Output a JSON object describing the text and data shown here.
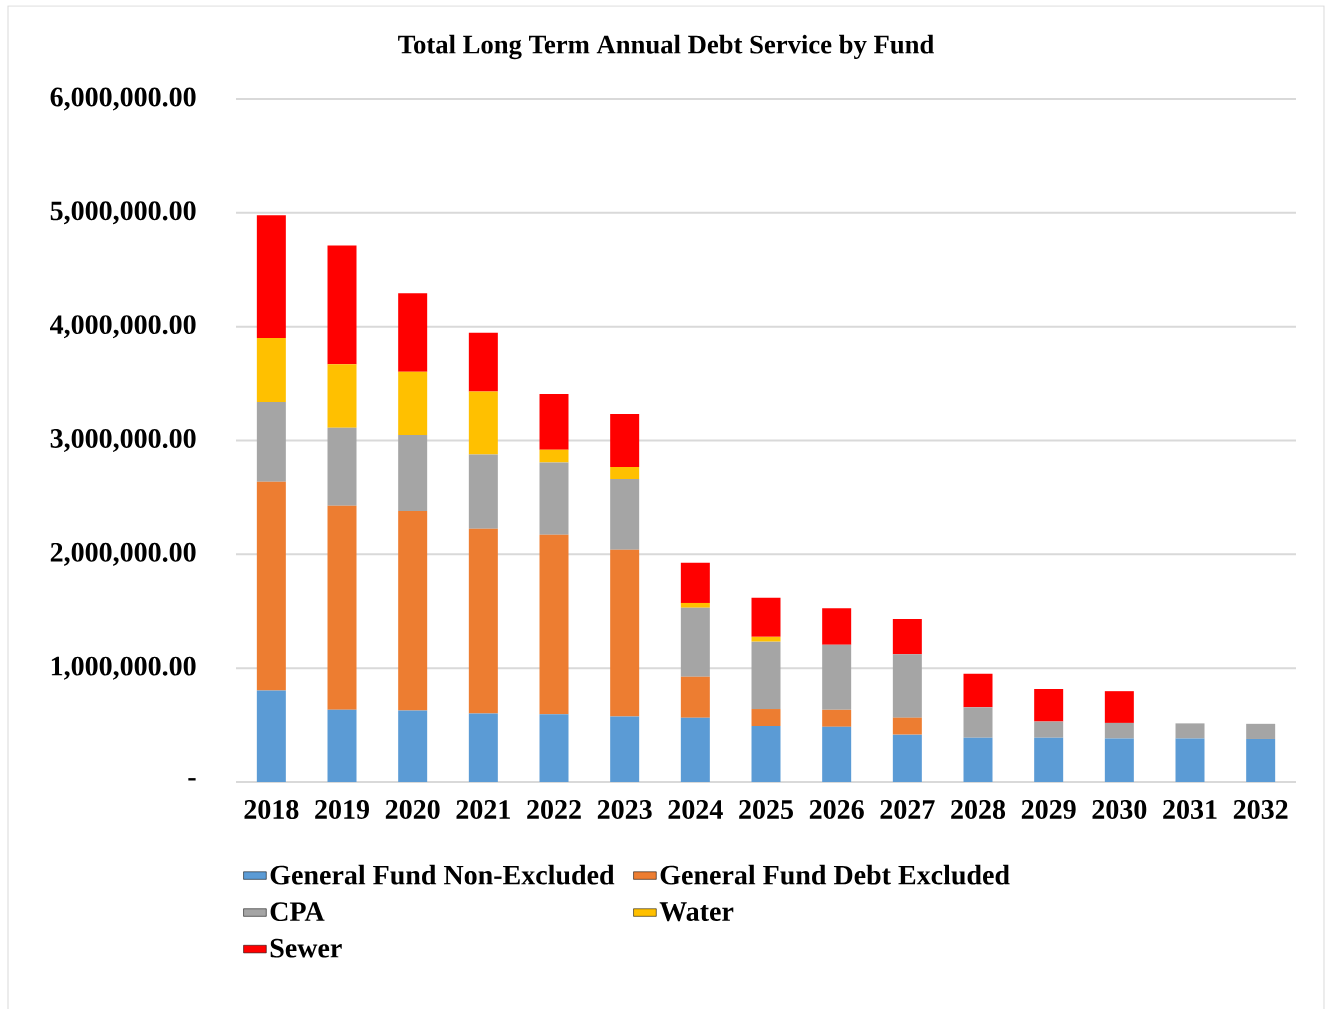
{
  "chart_data": {
    "type": "bar",
    "stacked": true,
    "title": "Total Long Term Annual Debt Service by Fund",
    "categories": [
      "2018",
      "2019",
      "2020",
      "2021",
      "2022",
      "2023",
      "2024",
      "2025",
      "2026",
      "2027",
      "2028",
      "2029",
      "2030",
      "2031",
      "2032"
    ],
    "series": [
      {
        "name": "General Fund Non-Excluded",
        "color": "#5b9bd5",
        "values": [
          803000,
          635000,
          628000,
          602000,
          595000,
          575000,
          565000,
          492000,
          485000,
          416000,
          389000,
          389000,
          382000,
          382000,
          378000
        ]
      },
      {
        "name": "General Fund Debt Excluded",
        "color": "#ed7d31",
        "values": [
          1835000,
          1791000,
          1752000,
          1623000,
          1577000,
          1465000,
          359000,
          149000,
          149000,
          149000,
          null,
          null,
          null,
          null,
          null
        ]
      },
      {
        "name": "CPA",
        "color": "#a5a5a5",
        "values": [
          700000,
          685000,
          668000,
          651000,
          635000,
          621000,
          607000,
          592000,
          572000,
          557000,
          267000,
          142000,
          137000,
          133000,
          133000
        ]
      },
      {
        "name": "Water",
        "color": "#ffc000",
        "values": [
          562000,
          558000,
          555000,
          555000,
          112000,
          106000,
          42000,
          42000,
          null,
          null,
          null,
          null,
          null,
          null,
          null
        ]
      },
      {
        "name": "Sewer",
        "color": "#ff0000",
        "values": [
          1078000,
          1045000,
          691000,
          516000,
          489000,
          466000,
          354000,
          343000,
          321000,
          309000,
          294000,
          286000,
          279000,
          null,
          null
        ]
      }
    ],
    "ylim": [
      0,
      6000000
    ],
    "yticks": [
      {
        "value": 0,
        "label": "-"
      },
      {
        "value": 1000000,
        "label": "1,000,000.00"
      },
      {
        "value": 2000000,
        "label": "2,000,000.00"
      },
      {
        "value": 3000000,
        "label": "3,000,000.00"
      },
      {
        "value": 4000000,
        "label": "4,000,000.00"
      },
      {
        "value": 5000000,
        "label": "5,000,000.00"
      },
      {
        "value": 6000000,
        "label": "6,000,000.00"
      }
    ],
    "grid": "y",
    "legend": "bottom"
  }
}
